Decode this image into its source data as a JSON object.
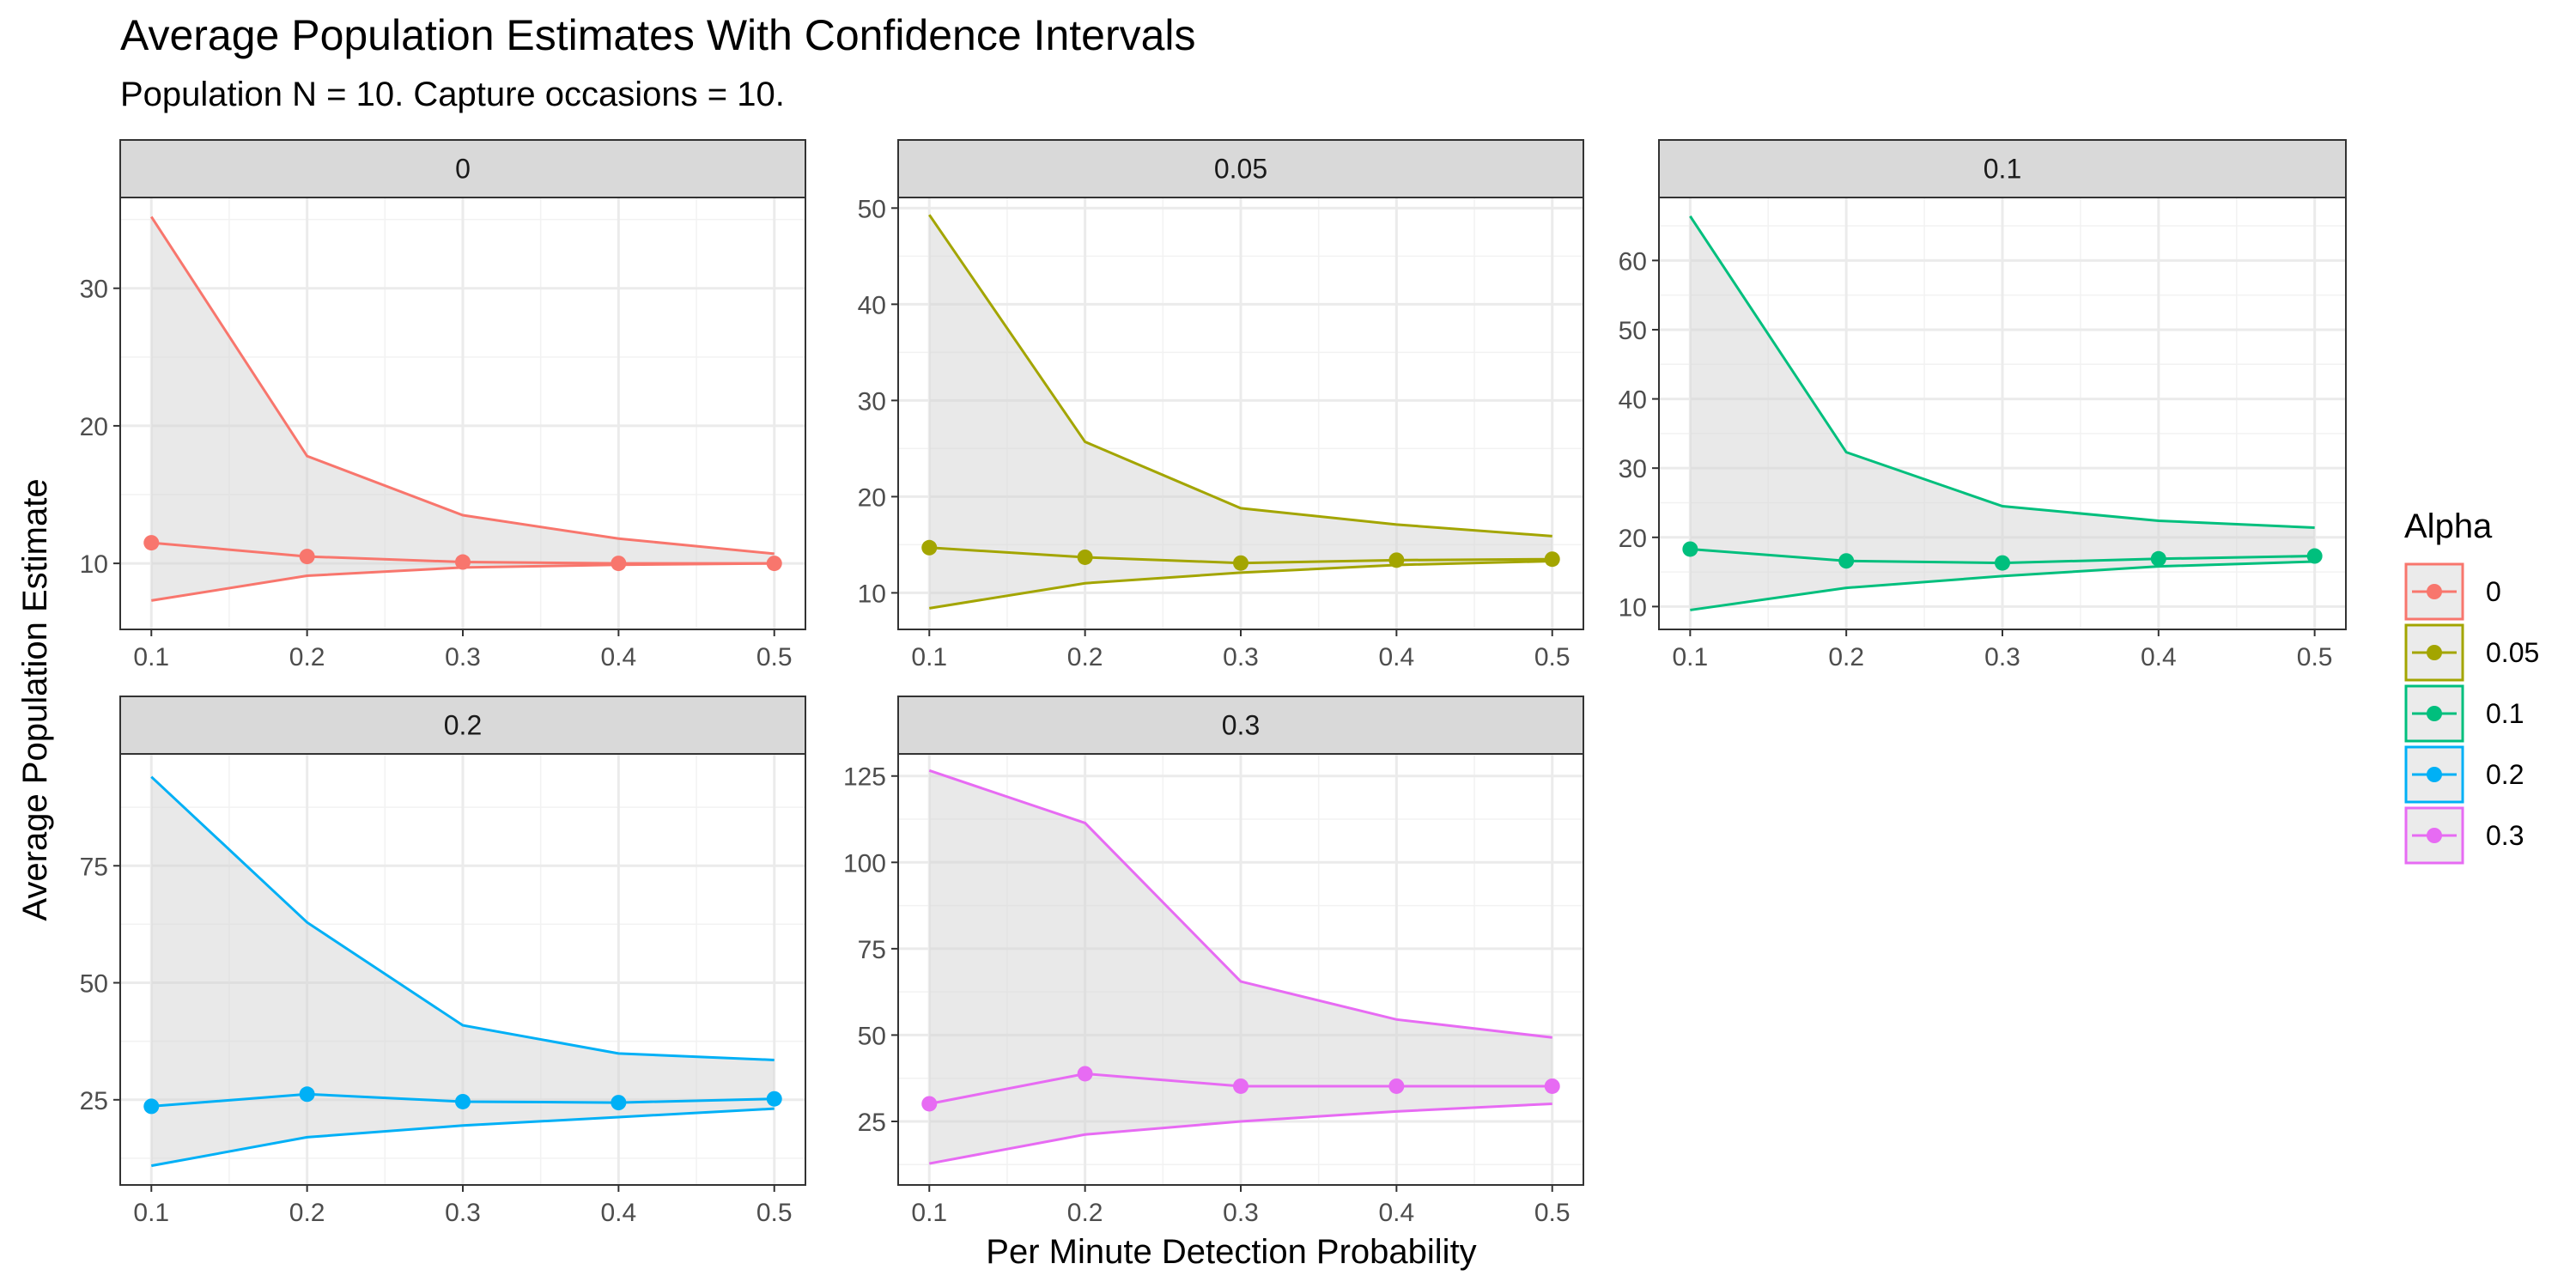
{
  "chart_data": {
    "type": "line",
    "title": "Average Population Estimates With Confidence Intervals",
    "subtitle": "Population N = 10. Capture occasions = 10.",
    "xlabel": "Per Minute Detection Probability",
    "ylabel": "Average Population Estimate",
    "x": [
      0.1,
      0.2,
      0.3,
      0.4,
      0.5
    ],
    "x_ticks": [
      "0.1",
      "0.2",
      "0.3",
      "0.4",
      "0.5"
    ],
    "legend": {
      "title": "Alpha",
      "position": "right",
      "items": [
        {
          "label": "0",
          "color": "#F8766D"
        },
        {
          "label": "0.05",
          "color": "#A3A500"
        },
        {
          "label": "0.1",
          "color": "#00BF7D"
        },
        {
          "label": "0.2",
          "color": "#00B0F6"
        },
        {
          "label": "0.3",
          "color": "#E76BF3"
        }
      ]
    },
    "grid": true,
    "ribbon_color": "#EBEBEB",
    "panels": [
      {
        "strip": "0",
        "color": "#F8766D",
        "ylim": [
          5.2,
          36.6
        ],
        "y_ticks": [
          10,
          20,
          30
        ],
        "estimate": [
          11.5,
          10.5,
          10.1,
          10.0,
          10.0
        ],
        "upper": [
          35.2,
          17.8,
          13.5,
          11.8,
          10.7
        ],
        "lower": [
          7.3,
          9.1,
          9.7,
          9.9,
          10.0
        ]
      },
      {
        "strip": "0.05",
        "color": "#A3A500",
        "ylim": [
          6.2,
          51.1
        ],
        "y_ticks": [
          10,
          20,
          30,
          40,
          50
        ],
        "estimate": [
          14.7,
          13.7,
          13.1,
          13.4,
          13.5
        ],
        "upper": [
          49.3,
          25.7,
          18.8,
          17.1,
          15.9
        ],
        "lower": [
          8.4,
          11.0,
          12.1,
          12.9,
          13.3
        ]
      },
      {
        "strip": "0.1",
        "color": "#00BF7D",
        "ylim": [
          6.7,
          69.1
        ],
        "y_ticks": [
          10,
          20,
          30,
          40,
          50,
          60
        ],
        "estimate": [
          18.3,
          16.6,
          16.3,
          16.9,
          17.3
        ],
        "upper": [
          66.4,
          32.3,
          24.5,
          22.4,
          21.4
        ],
        "lower": [
          9.5,
          12.7,
          14.4,
          15.8,
          16.5
        ]
      },
      {
        "strip": "0.2",
        "color": "#00B0F6",
        "ylim": [
          6.8,
          98.9
        ],
        "y_ticks": [
          25,
          50,
          75
        ],
        "estimate": [
          23.6,
          26.2,
          24.6,
          24.4,
          25.2
        ],
        "upper": [
          94.0,
          62.9,
          40.9,
          34.9,
          33.5
        ],
        "lower": [
          10.9,
          17.0,
          19.5,
          21.3,
          23.1
        ]
      },
      {
        "strip": "0.3",
        "color": "#E76BF3",
        "ylim": [
          6.6,
          131.4
        ],
        "y_ticks": [
          25,
          50,
          75,
          100,
          125
        ],
        "estimate": [
          30.1,
          38.8,
          35.2,
          35.2,
          35.2
        ],
        "upper": [
          126.6,
          111.4,
          65.5,
          54.5,
          49.3
        ],
        "lower": [
          12.8,
          21.2,
          25.0,
          27.9,
          30.1
        ]
      }
    ]
  }
}
